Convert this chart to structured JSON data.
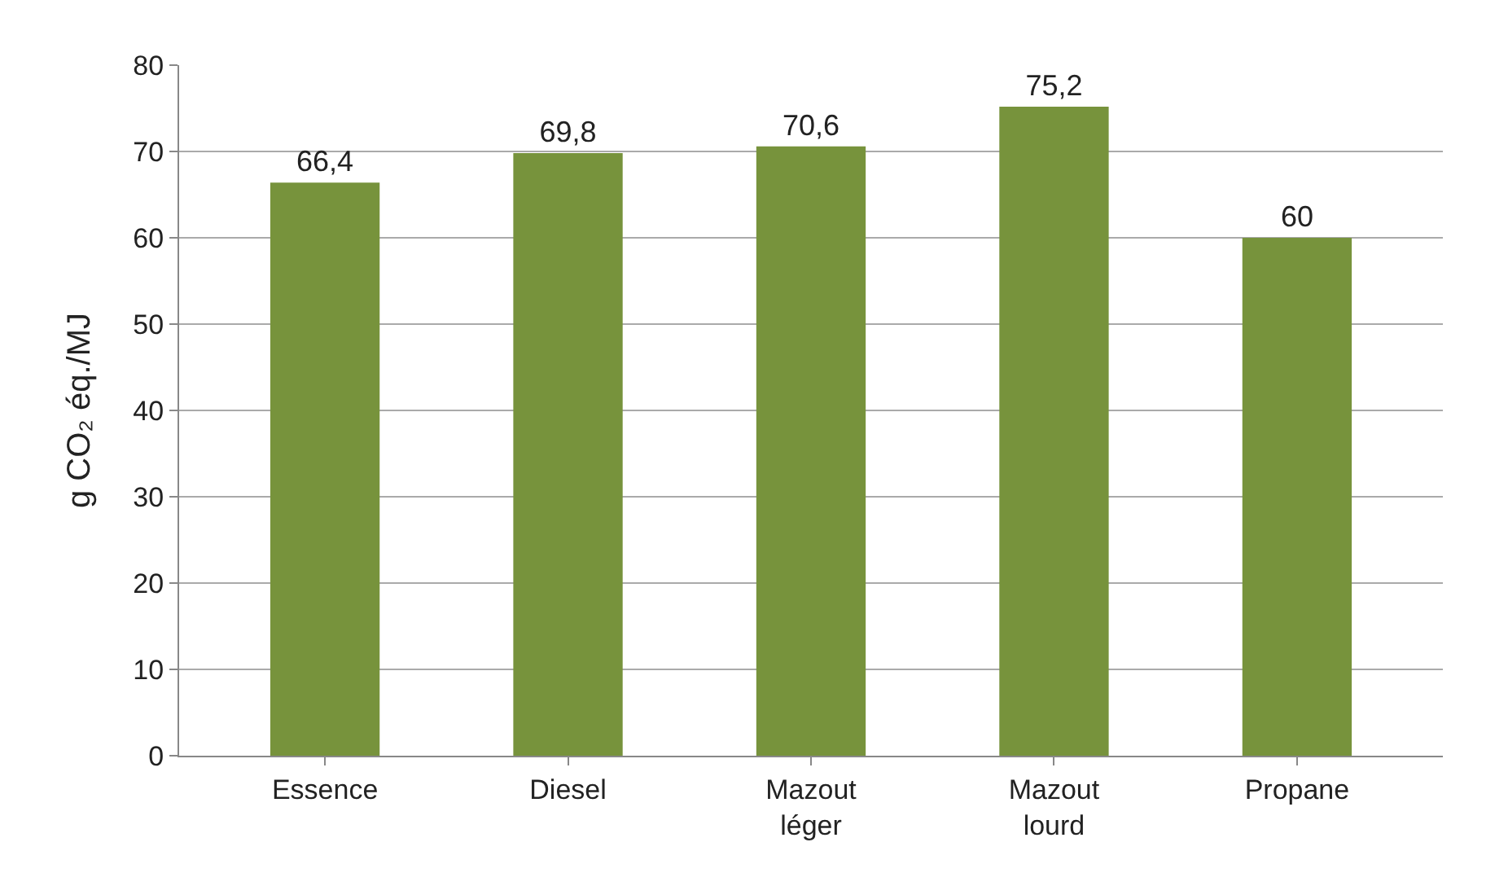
{
  "chart_data": {
    "type": "bar",
    "ylabel": "g CO₂ éq./MJ",
    "categories": [
      "Essence",
      "Diesel",
      "Mazout léger",
      "Mazout lourd",
      "Propane"
    ],
    "values": [
      66.4,
      69.8,
      70.6,
      75.2,
      60
    ],
    "value_labels": [
      "66,4",
      "69,8",
      "70,6",
      "75,2",
      "60"
    ],
    "color": "#77933c",
    "ylim": [
      0,
      80
    ],
    "yticks": [
      0,
      10,
      20,
      30,
      40,
      50,
      60,
      70,
      80
    ],
    "grid": "y",
    "legend": false
  }
}
